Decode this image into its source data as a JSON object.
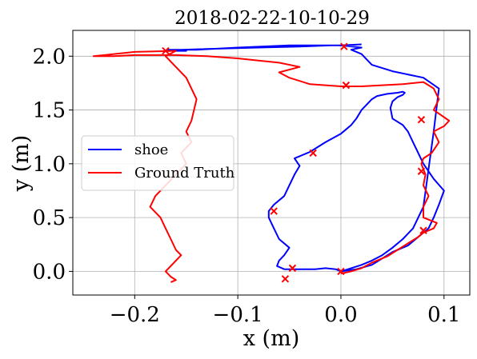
{
  "chart_data": {
    "type": "line",
    "title": "2018-02-22-10-10-29",
    "xlabel": "x (m)",
    "ylabel": "y (m)",
    "xlim": [
      -0.26,
      0.125
    ],
    "ylim": [
      -0.22,
      2.24
    ],
    "xticks": [
      -0.2,
      -0.1,
      0.0,
      0.1
    ],
    "xtick_labels": [
      "−0.2",
      "−0.1",
      "0.0",
      "0.1"
    ],
    "yticks": [
      0.0,
      0.5,
      1.0,
      1.5,
      2.0
    ],
    "ytick_labels": [
      "0.0",
      "0.5",
      "1.0",
      "1.5",
      "2.0"
    ],
    "grid": true,
    "legend": {
      "position": "center-left",
      "entries": [
        "shoe",
        "Ground Truth"
      ]
    },
    "series": [
      {
        "name": "shoe",
        "color": "#0000ff",
        "x": [
          0.0,
          0.015,
          0.03,
          0.04,
          0.05,
          0.065,
          0.075,
          0.08,
          0.085,
          0.09,
          0.095,
          0.1,
          0.09,
          0.085,
          0.08,
          0.075,
          0.07,
          0.065,
          0.06,
          0.05,
          0.048,
          0.05,
          0.055,
          0.06,
          0.062,
          0.06,
          0.055,
          0.045,
          0.035,
          0.03,
          0.025,
          0.02,
          0.015,
          0.01,
          0.005,
          0.0,
          -0.015,
          -0.03,
          -0.045,
          -0.04,
          -0.045,
          -0.05,
          -0.055,
          -0.065,
          -0.07,
          -0.07,
          -0.065,
          -0.06,
          -0.05,
          -0.055,
          -0.06,
          -0.062,
          -0.055,
          -0.04,
          -0.025,
          -0.015,
          -0.005,
          0.0,
          0.01,
          0.02,
          0.03,
          0.04,
          0.05,
          0.06,
          0.07,
          0.08,
          0.09,
          0.095,
          0.08,
          0.05,
          0.03,
          0.02,
          0.01,
          0.02,
          0.0,
          -0.05,
          -0.1,
          -0.14,
          -0.168,
          -0.16,
          -0.15,
          -0.155,
          -0.12,
          -0.08,
          -0.04,
          -0.01,
          0.0,
          0.02
        ],
        "y": [
          0.0,
          0.02,
          0.06,
          0.12,
          0.18,
          0.24,
          0.32,
          0.36,
          0.4,
          0.5,
          0.62,
          0.75,
          0.86,
          0.93,
          1.0,
          1.1,
          1.2,
          1.3,
          1.36,
          1.42,
          1.52,
          1.58,
          1.62,
          1.64,
          1.66,
          1.67,
          1.66,
          1.65,
          1.63,
          1.6,
          1.55,
          1.5,
          1.42,
          1.36,
          1.32,
          1.28,
          1.2,
          1.11,
          1.05,
          0.98,
          0.9,
          0.8,
          0.7,
          0.62,
          0.56,
          0.5,
          0.4,
          0.3,
          0.22,
          0.15,
          0.1,
          0.05,
          0.02,
          0.02,
          0.02,
          0.03,
          0.02,
          0.0,
          0.03,
          0.06,
          0.1,
          0.15,
          0.22,
          0.3,
          0.4,
          0.6,
          1.3,
          1.7,
          1.8,
          1.86,
          1.92,
          2.02,
          2.06,
          2.08,
          2.1,
          2.1,
          2.08,
          2.06,
          2.06,
          2.05,
          2.05,
          2.06,
          2.07,
          2.08,
          2.09,
          2.1,
          2.1,
          2.11
        ]
      },
      {
        "name": "Ground Truth",
        "color": "#ff0000",
        "x": [
          0.0,
          0.01,
          0.02,
          0.03,
          0.045,
          0.055,
          0.065,
          0.075,
          0.08,
          0.09,
          0.093,
          0.08,
          0.08,
          0.085,
          0.08,
          0.082,
          0.08,
          0.078,
          0.08,
          0.088,
          0.095,
          0.09,
          0.1,
          0.105,
          0.09,
          0.095,
          0.09,
          0.085,
          0.08,
          0.06,
          0.04,
          0.02,
          0.0,
          -0.03,
          -0.05,
          -0.06,
          -0.04,
          -0.06,
          -0.08,
          -0.1,
          -0.13,
          -0.16,
          -0.2,
          -0.22,
          -0.24,
          -0.2,
          -0.16,
          -0.17,
          -0.15,
          -0.14,
          -0.145,
          -0.15,
          -0.145,
          -0.15,
          -0.155,
          -0.15,
          -0.16,
          -0.17,
          -0.18,
          -0.185,
          -0.18,
          -0.175,
          -0.17,
          -0.165,
          -0.16,
          -0.155,
          -0.16,
          -0.165,
          -0.17,
          -0.165,
          -0.16,
          -0.165
        ],
        "y": [
          -0.02,
          0.0,
          0.03,
          0.08,
          0.14,
          0.2,
          0.26,
          0.32,
          0.36,
          0.4,
          0.45,
          0.5,
          0.6,
          0.7,
          0.8,
          0.9,
          0.95,
          1.0,
          1.05,
          1.1,
          1.2,
          1.3,
          1.35,
          1.4,
          1.5,
          1.6,
          1.7,
          1.73,
          1.76,
          1.74,
          1.73,
          1.72,
          1.72,
          1.74,
          1.8,
          1.85,
          1.9,
          1.94,
          1.96,
          1.98,
          2.0,
          2.01,
          2.01,
          2.0,
          2.0,
          2.04,
          2.05,
          2.0,
          1.8,
          1.6,
          1.4,
          1.3,
          1.2,
          1.15,
          1.1,
          1.0,
          0.9,
          0.8,
          0.7,
          0.6,
          0.55,
          0.5,
          0.4,
          0.3,
          0.2,
          0.15,
          0.1,
          0.05,
          0.0,
          -0.05,
          -0.08,
          -0.1
        ]
      }
    ],
    "markers": {
      "symbol": "x",
      "color": "#ff0000",
      "points": [
        {
          "x": 0.0,
          "y": 0.0
        },
        {
          "x": 0.003,
          "y": 2.09
        },
        {
          "x": 0.005,
          "y": 1.73
        },
        {
          "x": 0.078,
          "y": 1.41
        },
        {
          "x": -0.027,
          "y": 1.1
        },
        {
          "x": 0.078,
          "y": 0.93
        },
        {
          "x": 0.08,
          "y": 0.38
        },
        {
          "x": -0.065,
          "y": 0.56
        },
        {
          "x": -0.047,
          "y": 0.03
        },
        {
          "x": -0.054,
          "y": -0.07
        },
        {
          "x": -0.17,
          "y": 2.05
        }
      ]
    }
  }
}
